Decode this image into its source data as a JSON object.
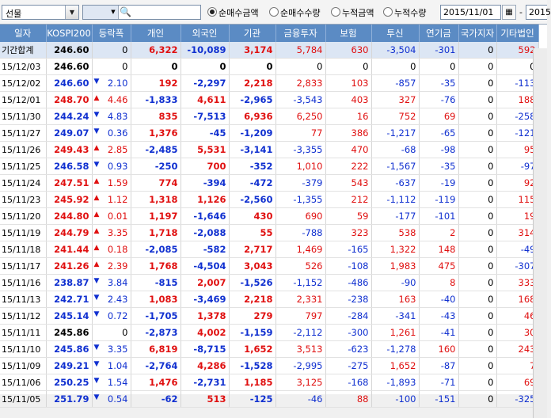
{
  "toolbar": {
    "market_select": "선물",
    "search_value": "",
    "radios": [
      "순매수금액",
      "순매수수량",
      "누적금액",
      "누적수량"
    ],
    "selected_radio": 0,
    "date_from": "2015/11/01",
    "date_sep": "-",
    "date_to": "2015"
  },
  "columns": [
    "일자",
    "KOSPI200",
    "등락폭",
    "개인",
    "외국인",
    "기관",
    "금융투자",
    "보험",
    "투신",
    "연기금",
    "국가지자",
    "기타법인"
  ],
  "rows": [
    {
      "d": "기간합계",
      "k": "246.60",
      "kd": "",
      "a": "0",
      "v": [
        "6,322",
        "-10,089",
        "3,174",
        "5,784",
        "630",
        "-3,504",
        "-301",
        "0",
        "592"
      ],
      "sum": true
    },
    {
      "d": "15/12/03",
      "k": "246.60",
      "kd": "",
      "a": "0",
      "v": [
        "0",
        "0",
        "0",
        "0",
        "0",
        "0",
        "0",
        "0",
        "0"
      ]
    },
    {
      "d": "15/12/02",
      "k": "246.60",
      "kd": "dn",
      "a": "2.10",
      "v": [
        "192",
        "-2,297",
        "2,218",
        "2,833",
        "103",
        "-857",
        "-35",
        "0",
        "-113"
      ]
    },
    {
      "d": "15/12/01",
      "k": "248.70",
      "kd": "up",
      "a": "4.46",
      "v": [
        "-1,833",
        "4,611",
        "-2,965",
        "-3,543",
        "403",
        "327",
        "-76",
        "0",
        "188"
      ]
    },
    {
      "d": "15/11/30",
      "k": "244.24",
      "kd": "dn",
      "a": "4.83",
      "v": [
        "835",
        "-7,513",
        "6,936",
        "6,250",
        "16",
        "752",
        "69",
        "0",
        "-258"
      ]
    },
    {
      "d": "15/11/27",
      "k": "249.07",
      "kd": "dn",
      "a": "0.36",
      "v": [
        "1,376",
        "-45",
        "-1,209",
        "77",
        "386",
        "-1,217",
        "-65",
        "0",
        "-121"
      ]
    },
    {
      "d": "15/11/26",
      "k": "249.43",
      "kd": "up",
      "a": "2.85",
      "v": [
        "-2,485",
        "5,531",
        "-3,141",
        "-3,355",
        "470",
        "-68",
        "-98",
        "0",
        "95"
      ]
    },
    {
      "d": "15/11/25",
      "k": "246.58",
      "kd": "dn",
      "a": "0.93",
      "v": [
        "-250",
        "700",
        "-352",
        "1,010",
        "222",
        "-1,567",
        "-35",
        "0",
        "-97"
      ]
    },
    {
      "d": "15/11/24",
      "k": "247.51",
      "kd": "up",
      "a": "1.59",
      "v": [
        "774",
        "-394",
        "-472",
        "-379",
        "543",
        "-637",
        "-19",
        "0",
        "92"
      ]
    },
    {
      "d": "15/11/23",
      "k": "245.92",
      "kd": "up",
      "a": "1.12",
      "v": [
        "1,318",
        "1,126",
        "-2,560",
        "-1,355",
        "212",
        "-1,112",
        "-119",
        "0",
        "115"
      ]
    },
    {
      "d": "15/11/20",
      "k": "244.80",
      "kd": "up",
      "a": "0.01",
      "v": [
        "1,197",
        "-1,646",
        "430",
        "690",
        "59",
        "-177",
        "-101",
        "0",
        "19"
      ]
    },
    {
      "d": "15/11/19",
      "k": "244.79",
      "kd": "up",
      "a": "3.35",
      "v": [
        "1,718",
        "-2,088",
        "55",
        "-788",
        "323",
        "538",
        "2",
        "0",
        "314"
      ]
    },
    {
      "d": "15/11/18",
      "k": "241.44",
      "kd": "up",
      "a": "0.18",
      "v": [
        "-2,085",
        "-582",
        "2,717",
        "1,469",
        "-165",
        "1,322",
        "148",
        "0",
        "-49"
      ]
    },
    {
      "d": "15/11/17",
      "k": "241.26",
      "kd": "up",
      "a": "2.39",
      "v": [
        "1,768",
        "-4,504",
        "3,043",
        "526",
        "-108",
        "1,983",
        "475",
        "0",
        "-307"
      ]
    },
    {
      "d": "15/11/16",
      "k": "238.87",
      "kd": "dn",
      "a": "3.84",
      "v": [
        "-815",
        "2,007",
        "-1,526",
        "-1,152",
        "-486",
        "-90",
        "8",
        "0",
        "333"
      ]
    },
    {
      "d": "15/11/13",
      "k": "242.71",
      "kd": "dn",
      "a": "2.43",
      "v": [
        "1,083",
        "-3,469",
        "2,218",
        "2,331",
        "-238",
        "163",
        "-40",
        "0",
        "168"
      ]
    },
    {
      "d": "15/11/12",
      "k": "245.14",
      "kd": "dn",
      "a": "0.72",
      "v": [
        "-1,705",
        "1,378",
        "279",
        "797",
        "-284",
        "-341",
        "-43",
        "0",
        "46"
      ]
    },
    {
      "d": "15/11/11",
      "k": "245.86",
      "kd": "",
      "a": "0",
      "v": [
        "-2,873",
        "4,002",
        "-1,159",
        "-2,112",
        "-300",
        "1,261",
        "-41",
        "0",
        "30"
      ]
    },
    {
      "d": "15/11/10",
      "k": "245.86",
      "kd": "dn",
      "a": "3.35",
      "v": [
        "6,819",
        "-8,715",
        "1,652",
        "3,513",
        "-623",
        "-1,278",
        "160",
        "0",
        "243"
      ]
    },
    {
      "d": "15/11/09",
      "k": "249.21",
      "kd": "dn",
      "a": "1.04",
      "v": [
        "-2,764",
        "4,286",
        "-1,528",
        "-2,995",
        "-275",
        "1,652",
        "-87",
        "0",
        "7"
      ]
    },
    {
      "d": "15/11/06",
      "k": "250.25",
      "kd": "dn",
      "a": "1.54",
      "v": [
        "1,476",
        "-2,731",
        "1,185",
        "3,125",
        "-168",
        "-1,893",
        "-71",
        "0",
        "69"
      ]
    },
    {
      "d": "15/11/05",
      "k": "251.79",
      "kd": "dn",
      "a": "0.54",
      "v": [
        "-62",
        "513",
        "-125",
        "-46",
        "88",
        "-100",
        "-151",
        "0",
        "-325"
      ]
    }
  ],
  "colors": {
    "header_bg": "#5b8bc4",
    "up": "#e01010",
    "down": "#1030d0",
    "sum_bg": "#dce6f4"
  }
}
